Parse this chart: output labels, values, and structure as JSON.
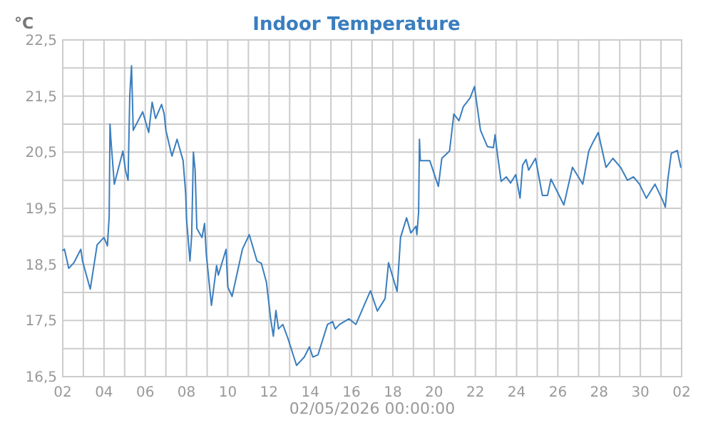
{
  "chart_data": {
    "type": "line",
    "title": "Indoor Temperature",
    "ylabel": "°C",
    "xlabel": "02/05/2026 00:00:00",
    "x": [
      "2026-04-02T00:00",
      "2026-04-02T02:00",
      "2026-04-02T07:00",
      "2026-04-02T13:00",
      "2026-04-02T21:00",
      "2026-04-02T23:00",
      "2026-04-03T08:00",
      "2026-04-03T16:00",
      "2026-04-04T00:00",
      "2026-04-04T04:00",
      "2026-04-04T06:00",
      "2026-04-04T07:00",
      "2026-04-04T08:00",
      "2026-04-04T12:00",
      "2026-04-04T22:00",
      "2026-04-05T01:00",
      "2026-04-05T04:00",
      "2026-04-05T06:00",
      "2026-04-05T08:00",
      "2026-04-05T10:00",
      "2026-04-05T21:00",
      "2026-04-06T04:00",
      "2026-04-06T08:00",
      "2026-04-06T12:00",
      "2026-04-06T19:00",
      "2026-04-06T22:00",
      "2026-04-07T00:00",
      "2026-04-07T07:00",
      "2026-04-07T13:00",
      "2026-04-07T20:00",
      "2026-04-07T23:00",
      "2026-04-08T00:00",
      "2026-04-08T04:00",
      "2026-04-08T06:00",
      "2026-04-08T08:00",
      "2026-04-08T10:00",
      "2026-04-08T12:00",
      "2026-04-08T18:00",
      "2026-04-08T21:00",
      "2026-04-08T23:00",
      "2026-04-09T05:00",
      "2026-04-09T11:00",
      "2026-04-09T13:00",
      "2026-04-09T22:00",
      "2026-04-10T00:00",
      "2026-04-10T05:00",
      "2026-04-10T17:00",
      "2026-04-11T01:00",
      "2026-04-11T10:00",
      "2026-04-11T15:00",
      "2026-04-11T21:00",
      "2026-04-12T02:00",
      "2026-04-12T05:00",
      "2026-04-12T08:00",
      "2026-04-12T11:00",
      "2026-04-12T16:00",
      "2026-04-12T22:00",
      "2026-04-13T08:00",
      "2026-04-13T17:00",
      "2026-04-13T23:00",
      "2026-04-14T03:00",
      "2026-04-14T09:00",
      "2026-04-14T20:00",
      "2026-04-15T02:00",
      "2026-04-15T05:00",
      "2026-04-15T10:00",
      "2026-04-15T21:00",
      "2026-04-16T05:00",
      "2026-04-16T22:00",
      "2026-04-17T06:00",
      "2026-04-17T15:00",
      "2026-04-17T19:00",
      "2026-04-18T05:00",
      "2026-04-18T09:00",
      "2026-04-18T16:00",
      "2026-04-18T21:00",
      "2026-04-19T03:00",
      "2026-04-19T04:00",
      "2026-04-19T06:00",
      "2026-04-19T07:00",
      "2026-04-19T08:00",
      "2026-04-19T19:00",
      "2026-04-20T05:00",
      "2026-04-20T09:00",
      "2026-04-20T18:00",
      "2026-04-20T23:00",
      "2026-04-21T05:00",
      "2026-04-21T10:00",
      "2026-04-21T18:00",
      "2026-04-21T23:00",
      "2026-04-22T06:00",
      "2026-04-22T14:00",
      "2026-04-22T21:00",
      "2026-04-22T23:00",
      "2026-04-23T02:00",
      "2026-04-23T06:00",
      "2026-04-23T12:00",
      "2026-04-23T17:00",
      "2026-04-23T23:00",
      "2026-04-24T04:00",
      "2026-04-24T07:00",
      "2026-04-24T11:00",
      "2026-04-24T14:00",
      "2026-04-24T22:00",
      "2026-04-25T06:00",
      "2026-04-25T12:00",
      "2026-04-25T16:00",
      "2026-04-26T07:00",
      "2026-04-26T17:00",
      "2026-04-27T05:00",
      "2026-04-27T12:00",
      "2026-04-27T17:00",
      "2026-04-27T23:00",
      "2026-04-28T08:00",
      "2026-04-28T16:00",
      "2026-04-29T01:00",
      "2026-04-29T09:00",
      "2026-04-29T16:00",
      "2026-04-29T23:00",
      "2026-04-30T07:00",
      "2026-04-30T17:00",
      "2026-05-01T02:00",
      "2026-05-01T05:00",
      "2026-05-01T08:00",
      "2026-05-01T12:00",
      "2026-05-01T19:00",
      "2026-05-01T23:00"
    ],
    "series": [
      {
        "color": "#3a7ebf",
        "values": [
          18.75,
          18.77,
          18.43,
          18.53,
          18.77,
          18.56,
          18.06,
          18.85,
          18.98,
          18.83,
          19.35,
          21.0,
          20.73,
          19.93,
          20.52,
          20.18,
          20.0,
          21.52,
          22.04,
          20.89,
          21.22,
          20.85,
          21.39,
          21.1,
          21.35,
          21.18,
          20.89,
          20.43,
          20.73,
          20.35,
          19.77,
          19.31,
          18.56,
          19.02,
          20.5,
          20.18,
          19.14,
          18.98,
          19.23,
          18.68,
          17.77,
          18.48,
          18.31,
          18.77,
          18.1,
          17.93,
          18.77,
          19.03,
          18.56,
          18.52,
          18.18,
          17.52,
          17.22,
          17.68,
          17.35,
          17.43,
          17.18,
          16.7,
          16.85,
          17.03,
          16.85,
          16.89,
          17.43,
          17.48,
          17.35,
          17.43,
          17.53,
          17.43,
          18.03,
          17.67,
          17.89,
          18.53,
          18.02,
          18.98,
          19.33,
          19.06,
          19.18,
          19.03,
          19.43,
          20.73,
          20.35,
          20.35,
          19.89,
          20.39,
          20.52,
          21.18,
          21.06,
          21.31,
          21.47,
          21.67,
          20.89,
          20.6,
          20.58,
          20.81,
          20.43,
          19.98,
          20.06,
          19.95,
          20.1,
          19.68,
          20.27,
          20.37,
          20.18,
          20.39,
          19.73,
          19.73,
          20.02,
          19.56,
          20.23,
          19.93,
          20.52,
          20.68,
          20.85,
          20.23,
          20.39,
          20.23,
          20.0,
          20.06,
          19.93,
          19.68,
          19.93,
          19.64,
          19.52,
          20.02,
          20.48,
          20.53,
          20.23
        ]
      }
    ],
    "xlim": [
      "2026-04-02",
      "2026-05-02"
    ],
    "xticks": [
      {
        "value": "2026-04-02",
        "label": "02"
      },
      {
        "value": "2026-04-03",
        "label": null
      },
      {
        "value": "2026-04-04",
        "label": "04"
      },
      {
        "value": "2026-04-05",
        "label": null
      },
      {
        "value": "2026-04-06",
        "label": "06"
      },
      {
        "value": "2026-04-07",
        "label": null
      },
      {
        "value": "2026-04-08",
        "label": "08"
      },
      {
        "value": "2026-04-09",
        "label": null
      },
      {
        "value": "2026-04-10",
        "label": "10"
      },
      {
        "value": "2026-04-11",
        "label": null
      },
      {
        "value": "2026-04-12",
        "label": "12"
      },
      {
        "value": "2026-04-13",
        "label": null
      },
      {
        "value": "2026-04-14",
        "label": "14"
      },
      {
        "value": "2026-04-15",
        "label": null
      },
      {
        "value": "2026-04-16",
        "label": "16"
      },
      {
        "value": "2026-04-17",
        "label": null
      },
      {
        "value": "2026-04-18",
        "label": "18"
      },
      {
        "value": "2026-04-19",
        "label": null
      },
      {
        "value": "2026-04-20",
        "label": "20"
      },
      {
        "value": "2026-04-21",
        "label": null
      },
      {
        "value": "2026-04-22",
        "label": "22"
      },
      {
        "value": "2026-04-23",
        "label": null
      },
      {
        "value": "2026-04-24",
        "label": "24"
      },
      {
        "value": "2026-04-25",
        "label": null
      },
      {
        "value": "2026-04-26",
        "label": "26"
      },
      {
        "value": "2026-04-27",
        "label": null
      },
      {
        "value": "2026-04-28",
        "label": "28"
      },
      {
        "value": "2026-04-29",
        "label": null
      },
      {
        "value": "2026-04-30",
        "label": "30"
      },
      {
        "value": "2026-05-01",
        "label": null
      },
      {
        "value": "2026-05-02",
        "label": "02"
      }
    ],
    "ylim": [
      16.5,
      22.5
    ],
    "yticks": [
      {
        "value": 16.5,
        "label": "16,5"
      },
      {
        "value": 17,
        "label": null
      },
      {
        "value": 17.5,
        "label": "17,5"
      },
      {
        "value": 18,
        "label": null
      },
      {
        "value": 18.5,
        "label": "18,5"
      },
      {
        "value": 19,
        "label": null
      },
      {
        "value": 19.5,
        "label": "19,5"
      },
      {
        "value": 20,
        "label": null
      },
      {
        "value": 20.5,
        "label": "20,5"
      },
      {
        "value": 21,
        "label": null
      },
      {
        "value": 21.5,
        "label": "21,5"
      },
      {
        "value": 22,
        "label": null
      },
      {
        "value": 22.5,
        "label": "22,5"
      }
    ],
    "grid": true
  }
}
